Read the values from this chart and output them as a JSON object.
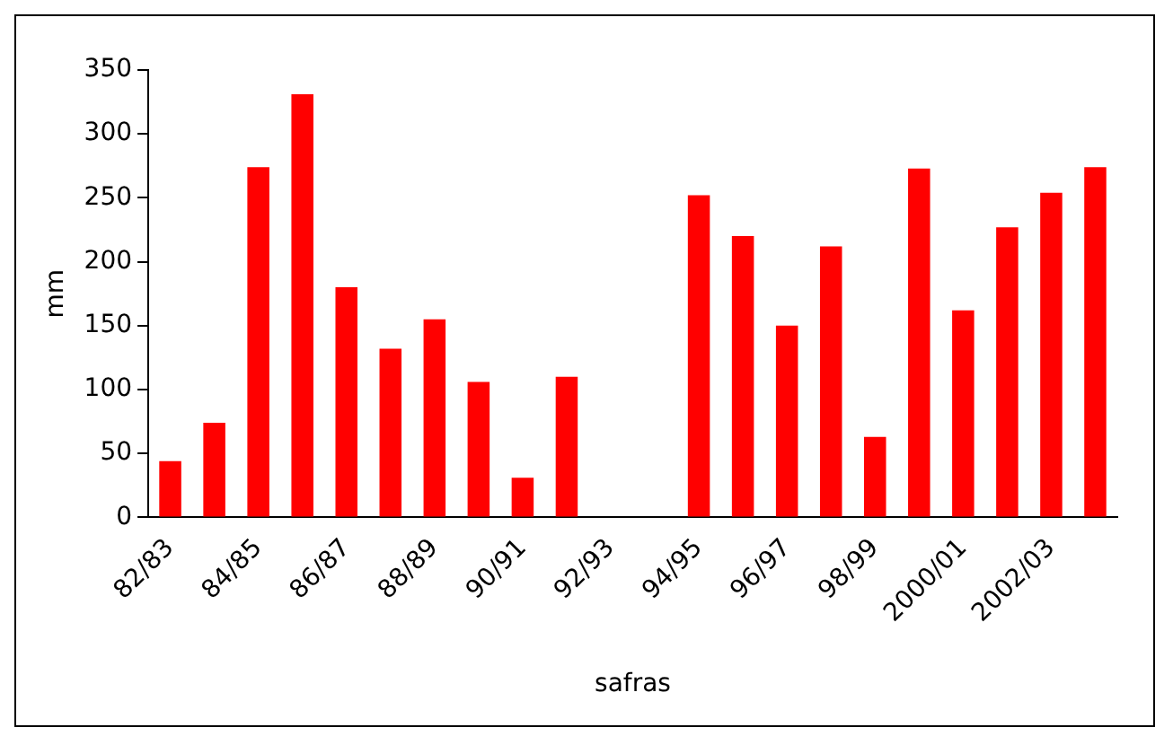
{
  "chart_data": {
    "type": "bar",
    "xlabel": "safras",
    "ylabel": "mm",
    "categories": [
      "82/83",
      null,
      "84/85",
      null,
      "86/87",
      null,
      "88/89",
      null,
      "90/91",
      null,
      "92/93",
      null,
      "94/95",
      null,
      "96/97",
      null,
      "98/99",
      null,
      "2000/01",
      null,
      "2002/03",
      null
    ],
    "values": [
      44,
      74,
      274,
      331,
      180,
      132,
      155,
      106,
      31,
      110,
      null,
      null,
      252,
      220,
      150,
      212,
      63,
      273,
      162,
      227,
      254,
      274
    ],
    "color": "#ff0000",
    "ylim": [
      0,
      350
    ],
    "yticks": [
      0,
      50,
      100,
      150,
      200,
      250,
      300,
      350
    ],
    "grid": false,
    "legend": false
  }
}
